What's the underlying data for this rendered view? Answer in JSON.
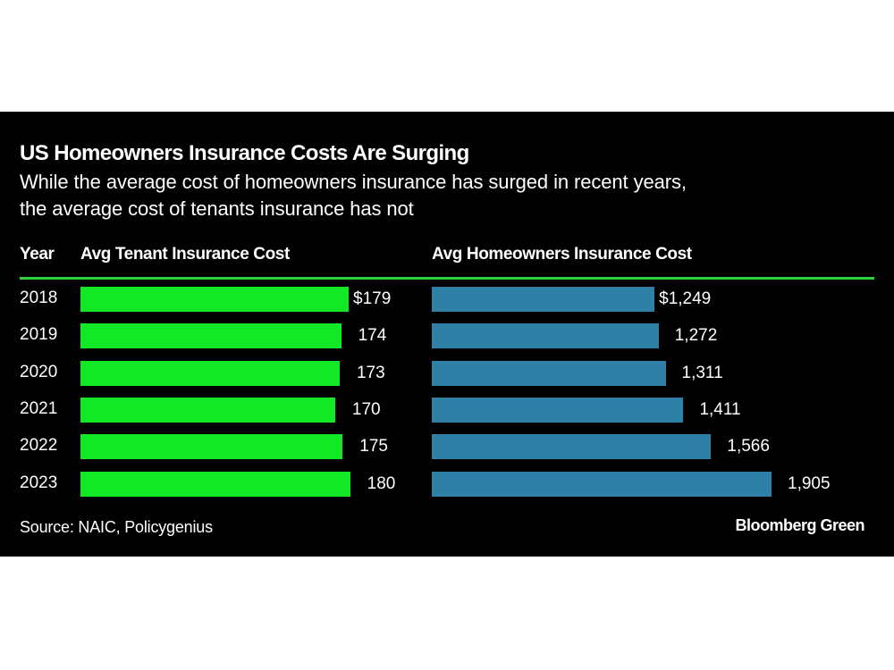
{
  "header": {
    "title": "US Homeowners Insurance Costs Are Surging",
    "subtitle_line1": "While the average cost of homeowners insurance has surged in recent years,",
    "subtitle_line2": "the average cost of tenants insurance has not"
  },
  "columns": {
    "year": "Year",
    "tenant": "Avg Tenant Insurance Cost",
    "homeowners": "Avg Homeowners Insurance Cost"
  },
  "footer": {
    "source": "Source: NAIC, Policygenius",
    "brand": "Bloomberg Green"
  },
  "colors": {
    "background": "#000000",
    "tenant_bar": "#13e826",
    "homeowners_bar": "#2e80a6",
    "rule": "#2fd23b",
    "text": "#ffffff"
  },
  "chart_data": {
    "type": "bar",
    "orientation": "horizontal",
    "title": "US Homeowners Insurance Costs Are Surging",
    "subtitle": "While the average cost of homeowners insurance has surged in recent years, the average cost of tenants insurance has not",
    "categories": [
      "2018",
      "2019",
      "2020",
      "2021",
      "2022",
      "2023"
    ],
    "series": [
      {
        "name": "Avg Tenant Insurance Cost",
        "unit": "USD",
        "values": [
          179,
          174,
          173,
          170,
          175,
          180
        ],
        "labels": [
          "$179",
          "174",
          "173",
          "170",
          "175",
          "180"
        ]
      },
      {
        "name": "Avg Homeowners Insurance Cost",
        "unit": "USD",
        "values": [
          1249,
          1272,
          1311,
          1411,
          1566,
          1905
        ],
        "labels": [
          "$1,249",
          "1,272",
          "1,311",
          "1,411",
          "1,566",
          "1,905"
        ]
      }
    ],
    "xlabel": "",
    "ylabel": "Year",
    "grid": false,
    "legend": "column-headers",
    "source": "Source: NAIC, Policygenius"
  }
}
